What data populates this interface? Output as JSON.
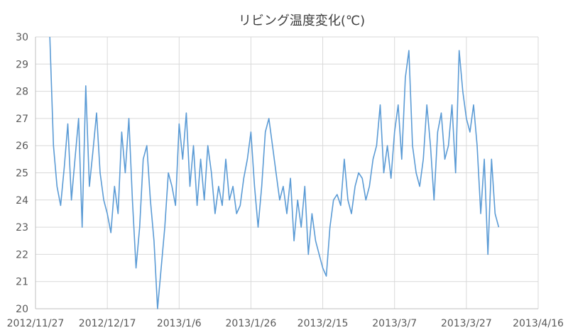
{
  "chart_data": {
    "type": "line",
    "title": "リビング温度変化(℃)",
    "xlabel": "",
    "ylabel": "",
    "x_ticks": [
      "2012/11/27",
      "2012/12/17",
      "2013/1/6",
      "2013/1/26",
      "2013/2/15",
      "2013/3/7",
      "2013/3/27",
      "2013/4/16"
    ],
    "xlim": [
      "2012-11-27",
      "2013-04-16"
    ],
    "ylim": [
      20,
      30
    ],
    "y_ticks": [
      20,
      21,
      22,
      23,
      24,
      25,
      26,
      27,
      28,
      29,
      30
    ],
    "grid": true,
    "legend": "none",
    "series_color": "#5B9BD5",
    "grid_color": "#D9D9D9",
    "axis_color": "#BFBFBF",
    "series": [
      {
        "x": [
          "2012-12-01",
          "2012-12-02",
          "2012-12-03",
          "2012-12-04",
          "2012-12-05",
          "2012-12-06",
          "2012-12-07",
          "2012-12-08",
          "2012-12-09",
          "2012-12-10",
          "2012-12-11",
          "2012-12-12",
          "2012-12-13",
          "2012-12-14",
          "2012-12-15",
          "2012-12-16",
          "2012-12-17",
          "2012-12-18",
          "2012-12-19",
          "2012-12-20",
          "2012-12-21",
          "2012-12-22",
          "2012-12-23",
          "2012-12-24",
          "2012-12-25",
          "2012-12-26",
          "2012-12-27",
          "2012-12-28",
          "2012-12-29",
          "2012-12-30",
          "2012-12-31",
          "2013-01-01",
          "2013-01-02",
          "2013-01-03",
          "2013-01-04",
          "2013-01-05",
          "2013-01-06",
          "2013-01-07",
          "2013-01-08",
          "2013-01-09",
          "2013-01-10",
          "2013-01-11",
          "2013-01-12",
          "2013-01-13",
          "2013-01-14",
          "2013-01-15",
          "2013-01-16",
          "2013-01-17",
          "2013-01-18",
          "2013-01-19",
          "2013-01-20",
          "2013-01-21",
          "2013-01-22",
          "2013-01-23",
          "2013-01-24",
          "2013-01-25",
          "2013-01-26",
          "2013-01-27",
          "2013-01-28",
          "2013-01-29",
          "2013-01-30",
          "2013-01-31",
          "2013-02-01",
          "2013-02-02",
          "2013-02-03",
          "2013-02-04",
          "2013-02-05",
          "2013-02-06",
          "2013-02-07",
          "2013-02-08",
          "2013-02-09",
          "2013-02-10",
          "2013-02-11",
          "2013-02-12",
          "2013-02-13",
          "2013-02-14",
          "2013-02-15",
          "2013-02-16",
          "2013-02-17",
          "2013-02-18",
          "2013-02-19",
          "2013-02-20",
          "2013-02-21",
          "2013-02-22",
          "2013-02-23",
          "2013-02-24",
          "2013-02-25",
          "2013-02-26",
          "2013-02-27",
          "2013-02-28",
          "2013-03-01",
          "2013-03-02",
          "2013-03-03",
          "2013-03-04",
          "2013-03-05",
          "2013-03-06",
          "2013-03-07",
          "2013-03-08",
          "2013-03-09",
          "2013-03-10",
          "2013-03-11",
          "2013-03-12",
          "2013-03-13",
          "2013-03-14",
          "2013-03-15",
          "2013-03-16",
          "2013-03-17",
          "2013-03-18",
          "2013-03-19",
          "2013-03-20",
          "2013-03-21",
          "2013-03-22",
          "2013-03-23",
          "2013-03-24",
          "2013-03-25",
          "2013-03-26",
          "2013-03-27",
          "2013-03-28",
          "2013-03-29",
          "2013-03-30",
          "2013-03-31",
          "2013-04-01",
          "2013-04-02",
          "2013-04-03",
          "2013-04-04",
          "2013-04-05"
        ],
        "values": [
          30.0,
          26.0,
          24.5,
          23.8,
          25.2,
          26.8,
          24.0,
          25.5,
          27.0,
          23.0,
          28.2,
          24.5,
          25.8,
          27.2,
          25.0,
          24.0,
          23.5,
          22.8,
          24.5,
          23.5,
          26.5,
          25.0,
          27.0,
          24.0,
          21.5,
          23.0,
          25.5,
          26.0,
          24.0,
          22.5,
          20.0,
          21.5,
          23.0,
          25.0,
          24.5,
          23.8,
          26.8,
          25.5,
          27.2,
          24.5,
          26.0,
          23.8,
          25.5,
          24.0,
          26.0,
          25.0,
          23.5,
          24.5,
          23.8,
          25.5,
          24.0,
          24.5,
          23.5,
          23.8,
          24.8,
          25.5,
          26.5,
          24.5,
          23.0,
          24.5,
          26.5,
          27.0,
          26.0,
          25.0,
          24.0,
          24.5,
          23.5,
          24.8,
          22.5,
          24.0,
          23.0,
          24.5,
          22.0,
          23.5,
          22.5,
          22.0,
          21.5,
          21.2,
          23.0,
          24.0,
          24.2,
          23.8,
          25.5,
          24.0,
          23.5,
          24.5,
          25.0,
          24.8,
          24.0,
          24.5,
          25.5,
          26.0,
          27.5,
          25.0,
          26.0,
          24.8,
          26.5,
          27.5,
          25.5,
          28.5,
          29.5,
          26.0,
          25.0,
          24.5,
          25.5,
          27.5,
          26.0,
          24.0,
          26.5,
          27.2,
          25.5,
          26.0,
          27.5,
          25.0,
          29.5,
          28.0,
          27.0,
          26.5,
          27.5,
          26.0,
          23.5,
          25.5,
          22.0,
          25.5,
          23.5,
          23.0
        ]
      }
    ]
  }
}
